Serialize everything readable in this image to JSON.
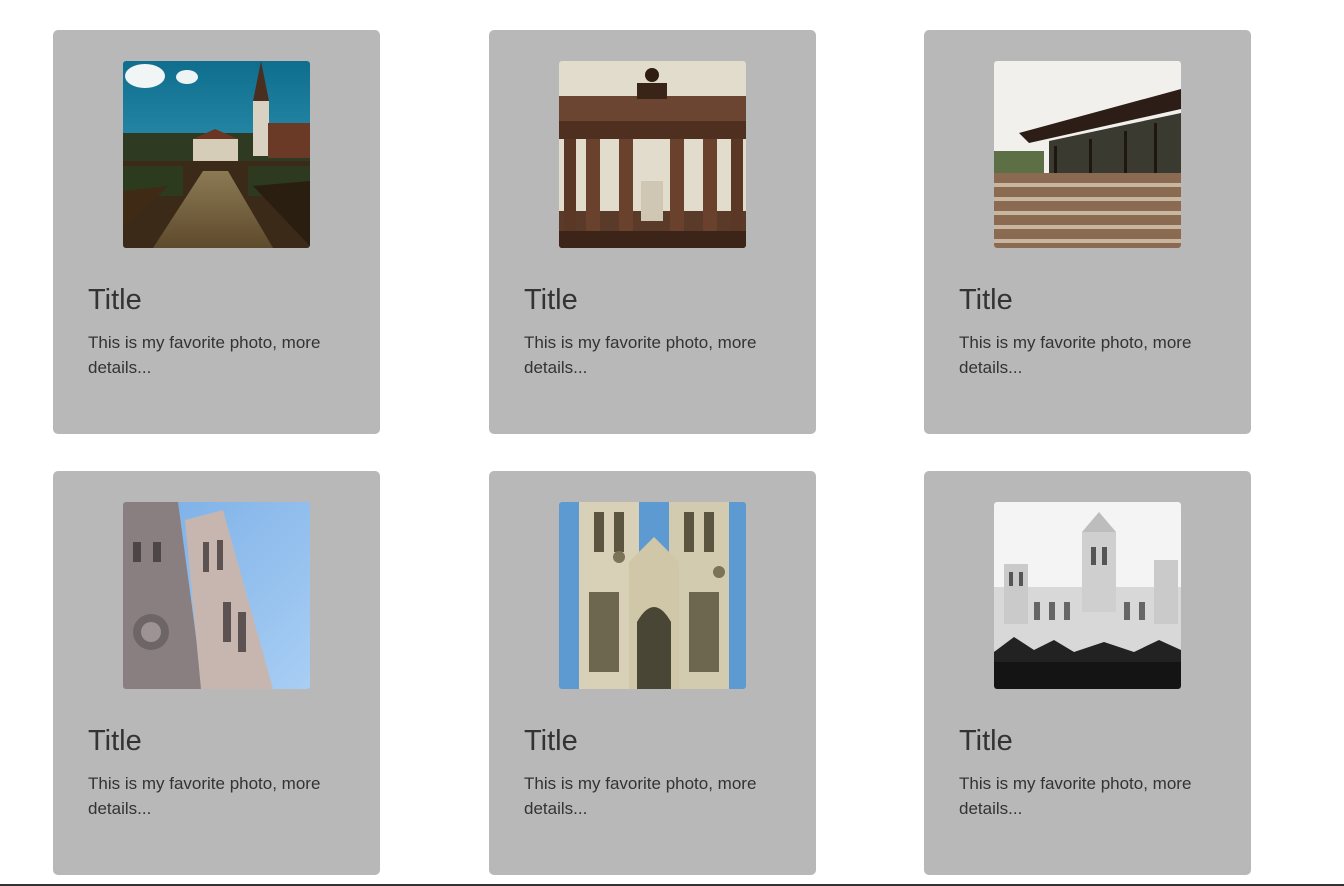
{
  "cards": [
    {
      "title": "Title",
      "description": "This is my favorite photo, more details...",
      "photo": "garden-church-photo"
    },
    {
      "title": "Title",
      "description": "This is my favorite photo, more details...",
      "photo": "brandenburg-gate-photo"
    },
    {
      "title": "Title",
      "description": "This is my favorite photo, more details...",
      "photo": "glass-pavilion-photo"
    },
    {
      "title": "Title",
      "description": "This is my favorite photo, more details...",
      "photo": "cathedral-tower-photo"
    },
    {
      "title": "Title",
      "description": "This is my favorite photo, more details...",
      "photo": "gothic-abbey-photo"
    },
    {
      "title": "Title",
      "description": "This is my favorite photo, more details...",
      "photo": "white-palace-photo"
    }
  ],
  "colors": {
    "card_background": "#b8b8b9",
    "text": "#333333",
    "page_background": "#ffffff"
  }
}
